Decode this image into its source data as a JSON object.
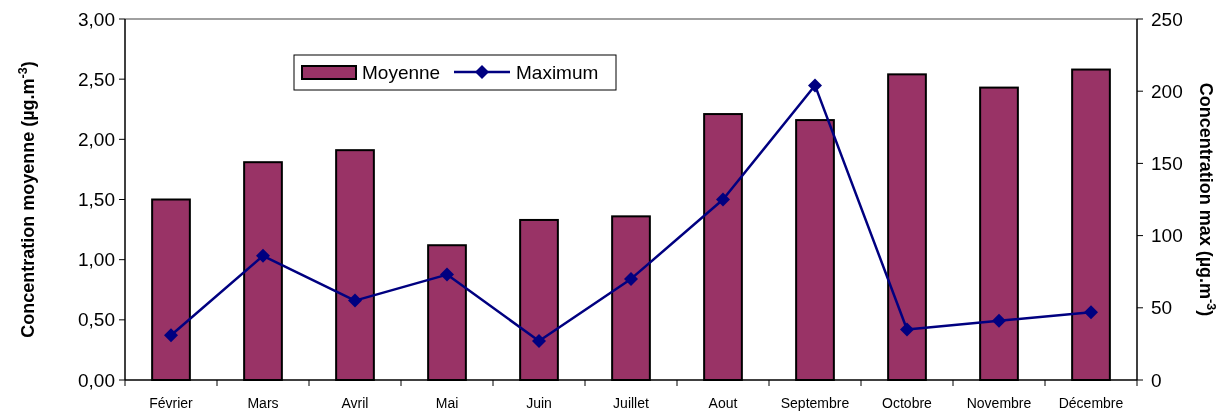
{
  "chart_data": {
    "type": "bar",
    "categories": [
      "Février",
      "Mars",
      "Avril",
      "Mai",
      "Juin",
      "Juillet",
      "Aout",
      "Septembre",
      "Octobre",
      "Novembre",
      "Décembre"
    ],
    "series": [
      {
        "name": "Moyenne",
        "color": "#993366",
        "values": [
          1.5,
          1.81,
          1.91,
          1.12,
          1.33,
          1.36,
          2.21,
          2.16,
          2.54,
          2.43,
          2.58
        ]
      },
      {
        "name": "Maximum",
        "type": "line",
        "axis": "y2",
        "color": "#000080",
        "marker": "diamond",
        "values": [
          31,
          86,
          55,
          73,
          27,
          70,
          125,
          204,
          35,
          41,
          47
        ]
      }
    ],
    "ylabel": "Concentration moyenne (µg.m$^{-3}$)",
    "y2label": "Concentration max (µg.m$^{-3}$)",
    "ylim": [
      0,
      3
    ],
    "yticks": [
      {
        "value": 0,
        "label": "0,00"
      },
      {
        "value": 0.5,
        "label": "0,50"
      },
      {
        "value": 1,
        "label": "1,00"
      },
      {
        "value": 1.5,
        "label": "1,50"
      },
      {
        "value": 2,
        "label": "2,00"
      },
      {
        "value": 2.5,
        "label": "2,50"
      },
      {
        "value": 3,
        "label": "3,00"
      }
    ],
    "y2lim": [
      0,
      250
    ],
    "y2ticks": [
      0,
      50,
      100,
      150,
      200,
      250
    ],
    "legend": "top",
    "grid": false
  }
}
